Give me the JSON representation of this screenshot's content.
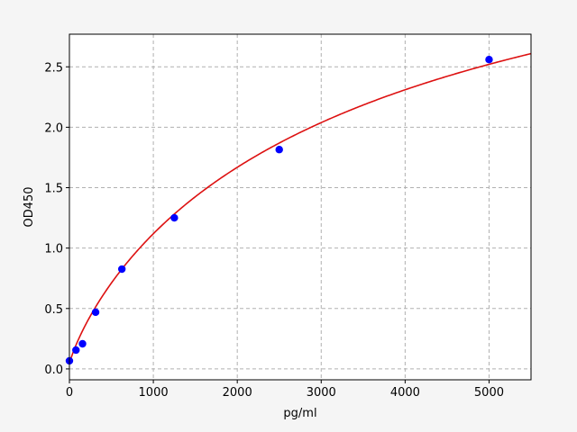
{
  "chart_data": {
    "type": "scatter",
    "title": "",
    "xlabel": "pg/ml",
    "ylabel": "OD450",
    "xlim": [
      0,
      5500
    ],
    "ylim": [
      -0.09,
      2.77
    ],
    "xticks": [
      0,
      1000,
      2000,
      3000,
      4000,
      5000
    ],
    "xtick_labels": [
      "0",
      "1000",
      "2000",
      "3000",
      "4000",
      "5000"
    ],
    "yticks": [
      0.0,
      0.5,
      1.0,
      1.5,
      2.0,
      2.5
    ],
    "ytick_labels": [
      "0.0",
      "0.5",
      "1.0",
      "1.5",
      "2.0",
      "2.5"
    ],
    "grid": true,
    "points": {
      "color": "#0000ff",
      "x": [
        0,
        78,
        156,
        312,
        625,
        1250,
        2500,
        5000
      ],
      "y": [
        0.067,
        0.156,
        0.208,
        0.469,
        0.826,
        1.25,
        1.815,
        2.56
      ]
    },
    "fit_curve": {
      "color": "#dd1111",
      "model": "4PL",
      "a": 0.04,
      "b": 0.85,
      "c": 3834,
      "d": 4.5
    }
  }
}
